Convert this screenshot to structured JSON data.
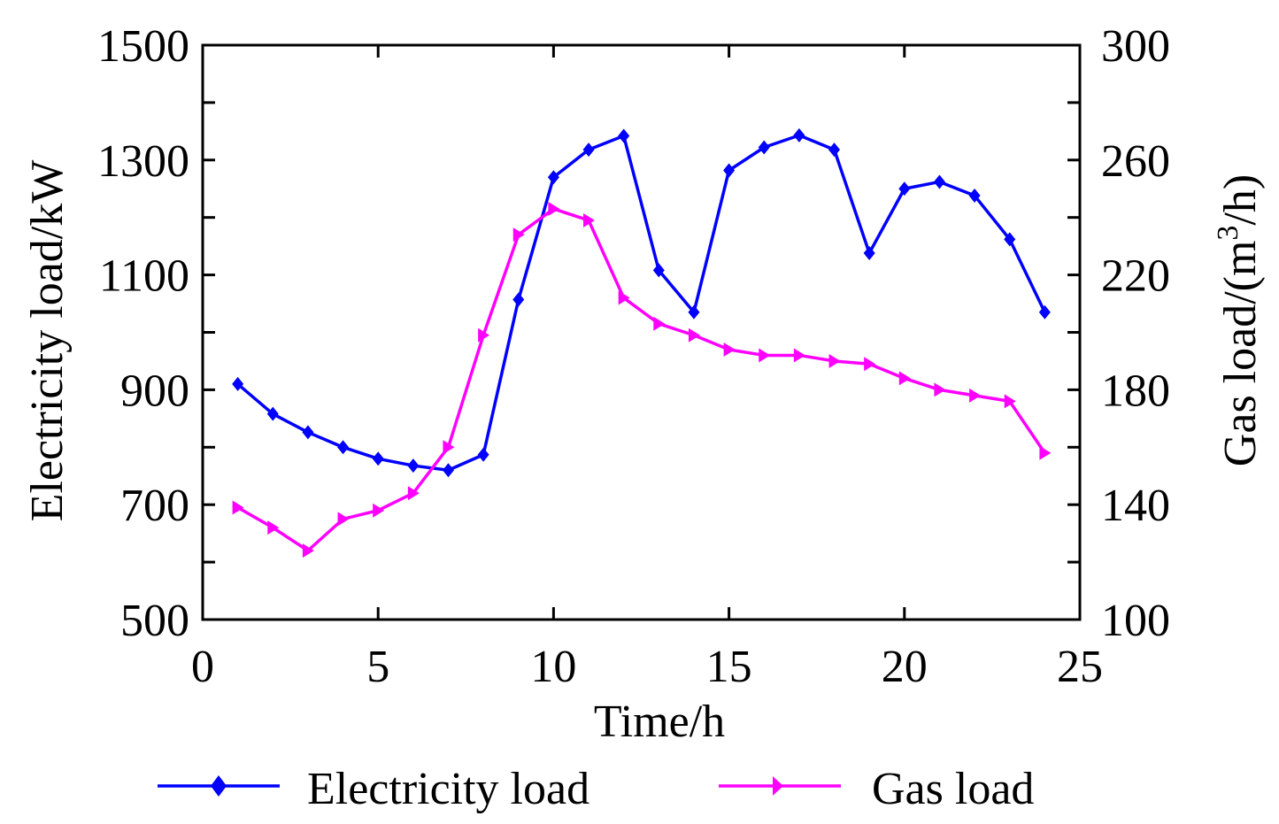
{
  "chart_data": {
    "type": "line",
    "x": [
      1,
      2,
      3,
      4,
      5,
      6,
      7,
      8,
      9,
      10,
      11,
      12,
      13,
      14,
      15,
      16,
      17,
      18,
      19,
      20,
      21,
      22,
      23,
      24
    ],
    "xlabel": "Time/h",
    "xlim": [
      0,
      25
    ],
    "xticks": [
      0,
      5,
      10,
      15,
      20,
      25
    ],
    "xtick_labels": [
      "0",
      "5",
      "10",
      "15",
      "20",
      "25"
    ],
    "y_left": {
      "label": "Electricity load/kW",
      "lim": [
        500,
        1500
      ],
      "ticks": [
        500,
        700,
        900,
        1100,
        1300,
        1500
      ],
      "tick_labels": [
        "500",
        "700",
        "900",
        "1100",
        "1300",
        "1500"
      ]
    },
    "y_right": {
      "label_main": "Gas load/(m",
      "label_sup": "3",
      "label_tail": "/h)",
      "lim": [
        100,
        300
      ],
      "ticks": [
        100,
        140,
        180,
        220,
        260,
        300
      ],
      "tick_labels": [
        "100",
        "140",
        "180",
        "220",
        "260",
        "300"
      ]
    },
    "series": [
      {
        "name": "Electricity load",
        "axis": "left",
        "color": "#0000ff",
        "marker": "diamond",
        "values": [
          910,
          858,
          826,
          800,
          780,
          768,
          760,
          787,
          1057,
          1270,
          1318,
          1342,
          1108,
          1035,
          1282,
          1322,
          1343,
          1318,
          1138,
          1250,
          1262,
          1238,
          1162,
          1035
        ]
      },
      {
        "name": "Gas load",
        "axis": "right",
        "color": "#ff00ff",
        "marker": "triangle-right",
        "values": [
          139,
          132,
          124,
          135,
          138,
          144,
          160,
          199,
          234,
          243,
          239,
          212,
          203,
          199,
          194,
          192,
          192,
          190,
          189,
          184,
          180,
          178,
          176,
          158
        ]
      }
    ],
    "legend": {
      "position": "bottom",
      "items": [
        "Electricity load",
        "Gas load"
      ]
    }
  }
}
